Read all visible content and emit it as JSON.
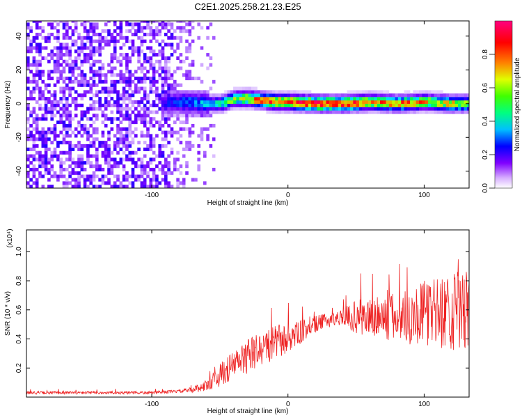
{
  "title": "C2E1.2025.258.21.23.E25",
  "chart_data": [
    {
      "type": "heatmap",
      "xlabel": "Height of straight line (km)",
      "ylabel": "Frequency (Hz)",
      "xlim": [
        -192,
        133
      ],
      "ylim": [
        -50,
        49
      ],
      "xticks": [
        -100,
        0,
        100
      ],
      "xtick_labels": [
        "-100",
        "0",
        "100"
      ],
      "yticks": [
        -40,
        -20,
        0,
        20,
        40
      ],
      "ytick_labels": [
        "-40",
        "-20",
        "0",
        "20",
        "40"
      ],
      "colorbar": {
        "label": "Normalized spectral amplitude",
        "range": [
          0.0,
          1.0
        ],
        "ticks": [
          0.0,
          0.2,
          0.4,
          0.6,
          0.8
        ],
        "tick_labels": [
          "0.0",
          "0.2",
          "0.4",
          "0.6",
          "0.8"
        ],
        "colormap": [
          "#ffffff",
          "#b070ff",
          "#7000ff",
          "#0000ff",
          "#00e0ff",
          "#00ff40",
          "#c0ff00",
          "#ff8000",
          "#ff0000",
          "#ff0060"
        ]
      },
      "noise_region": {
        "x": [
          -192,
          -55
        ],
        "level": [
          0.05,
          0.3
        ]
      },
      "signal_band": {
        "x": [
          -95,
          -80,
          -60,
          -50,
          -40,
          -30,
          -20,
          -10,
          0,
          20,
          40,
          60,
          80,
          100,
          120,
          133
        ],
        "center_freq": [
          0,
          1,
          0,
          0,
          3,
          3,
          2,
          1,
          1,
          0,
          0,
          1,
          0,
          1,
          0,
          0
        ],
        "amplitude": [
          0.3,
          0.4,
          0.45,
          0.55,
          0.7,
          0.8,
          0.85,
          0.9,
          0.95,
          1.0,
          0.95,
          0.9,
          0.85,
          0.8,
          0.75,
          0.7
        ]
      }
    },
    {
      "type": "line",
      "xlabel": "Height of straight line (km)",
      "ylabel": "SNR (10 * v/v)",
      "y_multiplier": "(x10⁴)",
      "xlim": [
        -192,
        133
      ],
      "ylim": [
        0.0,
        1.15
      ],
      "xticks": [
        -100,
        0,
        100
      ],
      "xtick_labels": [
        "-100",
        "0",
        "100"
      ],
      "yticks": [
        0.2,
        0.4,
        0.6,
        0.8,
        1.0
      ],
      "ytick_labels": [
        "0.2",
        "0.4",
        "0.6",
        "0.8",
        "1.0"
      ],
      "color": "#ee2222",
      "envelope": {
        "x": [
          -192,
          -100,
          -80,
          -70,
          -60,
          -50,
          -40,
          -30,
          -20,
          -10,
          0,
          10,
          20,
          30,
          40,
          50,
          60,
          70,
          80,
          90,
          100,
          110,
          120,
          133
        ],
        "mean": [
          0.03,
          0.03,
          0.04,
          0.05,
          0.08,
          0.15,
          0.22,
          0.28,
          0.33,
          0.37,
          0.4,
          0.45,
          0.5,
          0.53,
          0.55,
          0.55,
          0.55,
          0.54,
          0.55,
          0.56,
          0.58,
          0.58,
          0.6,
          0.58
        ],
        "spread": [
          0.01,
          0.01,
          0.01,
          0.02,
          0.04,
          0.08,
          0.1,
          0.12,
          0.12,
          0.12,
          0.1,
          0.08,
          0.06,
          0.05,
          0.05,
          0.12,
          0.14,
          0.16,
          0.18,
          0.2,
          0.22,
          0.24,
          0.28,
          0.28
        ]
      }
    }
  ]
}
